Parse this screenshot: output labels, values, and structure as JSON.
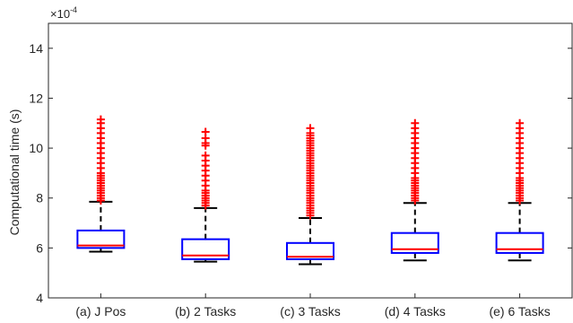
{
  "chart_data": {
    "type": "boxplot",
    "xlabel": "",
    "ylabel": "Computational time (s)",
    "y_exponent_label": "×10",
    "y_exponent_power": "-4",
    "ylim": [
      4,
      15
    ],
    "yticks": [
      4,
      6,
      8,
      10,
      12,
      14
    ],
    "ytick_labels": [
      "4",
      "6",
      "8",
      "10",
      "12",
      "14"
    ],
    "grid": false,
    "box_color": "#0000ff",
    "median_color": "#ff0000",
    "whisker_color": "#000000",
    "outlier_color": "#ff0000",
    "categories": [
      "(a) J Pos",
      "(b) 2 Tasks",
      "(c) 3 Tasks",
      "(d) 4 Tasks",
      "(e) 6 Tasks"
    ],
    "boxes": [
      {
        "label": "(a) J Pos",
        "whisker_low": 5.85,
        "q1": 6.0,
        "median": 6.1,
        "q3": 6.7,
        "whisker_high": 7.85,
        "outliers": [
          7.9,
          8.0,
          8.1,
          8.2,
          8.3,
          8.4,
          8.5,
          8.6,
          8.7,
          8.8,
          8.9,
          9.0,
          9.2,
          9.4,
          9.6,
          9.8,
          10.0,
          10.2,
          10.4,
          10.6,
          10.8,
          11.0,
          11.15
        ]
      },
      {
        "label": "(b) 2 Tasks",
        "whisker_low": 5.45,
        "q1": 5.55,
        "median": 5.7,
        "q3": 6.35,
        "whisker_high": 7.6,
        "outliers": [
          7.7,
          7.8,
          7.9,
          8.0,
          8.1,
          8.2,
          8.3,
          8.5,
          8.7,
          8.9,
          9.1,
          9.3,
          9.5,
          9.7,
          10.1,
          10.2,
          10.4,
          10.65
        ]
      },
      {
        "label": "(c) 3 Tasks",
        "whisker_low": 5.35,
        "q1": 5.55,
        "median": 5.65,
        "q3": 6.2,
        "whisker_high": 7.2,
        "outliers": [
          7.3,
          7.4,
          7.5,
          7.6,
          7.7,
          7.8,
          7.9,
          8.0,
          8.1,
          8.2,
          8.3,
          8.4,
          8.5,
          8.6,
          8.7,
          8.8,
          8.9,
          9.0,
          9.1,
          9.2,
          9.3,
          9.4,
          9.5,
          9.6,
          9.7,
          9.8,
          9.9,
          10.0,
          10.1,
          10.2,
          10.3,
          10.4,
          10.5,
          10.6,
          10.8
        ]
      },
      {
        "label": "(d) 4 Tasks",
        "whisker_low": 5.5,
        "q1": 5.8,
        "median": 5.95,
        "q3": 6.6,
        "whisker_high": 7.8,
        "outliers": [
          7.9,
          8.0,
          8.1,
          8.2,
          8.3,
          8.4,
          8.5,
          8.6,
          8.7,
          8.8,
          9.0,
          9.2,
          9.4,
          9.6,
          9.8,
          10.0,
          10.2,
          10.4,
          10.6,
          10.8,
          11.0
        ]
      },
      {
        "label": "(e) 6 Tasks",
        "whisker_low": 5.5,
        "q1": 5.8,
        "median": 5.95,
        "q3": 6.6,
        "whisker_high": 7.8,
        "outliers": [
          7.9,
          8.0,
          8.1,
          8.2,
          8.3,
          8.4,
          8.5,
          8.6,
          8.7,
          8.8,
          9.0,
          9.2,
          9.4,
          9.6,
          9.8,
          10.0,
          10.2,
          10.4,
          10.6,
          10.8,
          11.0
        ]
      }
    ]
  }
}
